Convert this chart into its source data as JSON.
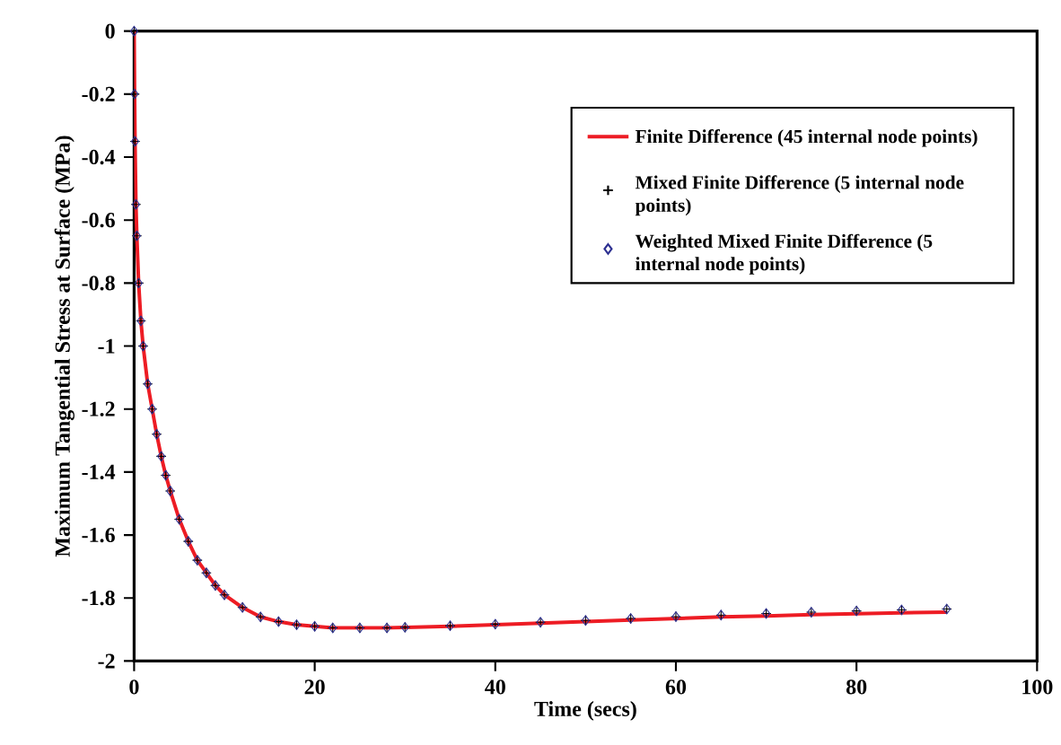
{
  "chart_data": {
    "type": "line",
    "xlabel": "Time (secs)",
    "ylabel": "Maximum Tangential Stress at Surface (MPa)",
    "x": [
      0,
      0.05,
      0.1,
      0.2,
      0.3,
      0.5,
      0.75,
      1,
      1.5,
      2,
      2.5,
      3,
      3.5,
      4,
      5,
      6,
      7,
      8,
      9,
      10,
      12,
      14,
      16,
      18,
      20,
      22,
      25,
      28,
      30,
      35,
      40,
      45,
      50,
      55,
      60,
      65,
      70,
      75,
      80,
      85,
      90
    ],
    "series": [
      {
        "name": "Finite Difference (45 internal node points)",
        "color": "#ed1c24",
        "marker": "none",
        "line_style": "solid",
        "values": [
          0,
          -0.2,
          -0.35,
          -0.55,
          -0.65,
          -0.8,
          -0.92,
          -1.0,
          -1.12,
          -1.2,
          -1.28,
          -1.35,
          -1.41,
          -1.46,
          -1.55,
          -1.62,
          -1.68,
          -1.72,
          -1.76,
          -1.79,
          -1.83,
          -1.86,
          -1.875,
          -1.885,
          -1.89,
          -1.895,
          -1.895,
          -1.895,
          -1.893,
          -1.89,
          -1.885,
          -1.88,
          -1.875,
          -1.87,
          -1.865,
          -1.86,
          -1.857,
          -1.853,
          -1.85,
          -1.847,
          -1.845
        ]
      },
      {
        "name": "Mixed Finite Difference (5 internal node points)",
        "color": "#000000",
        "type": "scatter",
        "marker": "cross",
        "values": [
          0,
          -0.2,
          -0.35,
          -0.55,
          -0.65,
          -0.8,
          -0.92,
          -1.0,
          -1.12,
          -1.2,
          -1.28,
          -1.35,
          -1.41,
          -1.46,
          -1.55,
          -1.62,
          -1.68,
          -1.72,
          -1.76,
          -1.79,
          -1.83,
          -1.86,
          -1.875,
          -1.885,
          -1.89,
          -1.895,
          -1.895,
          -1.895,
          -1.893,
          -1.888,
          -1.883,
          -1.877,
          -1.871,
          -1.865,
          -1.859,
          -1.854,
          -1.849,
          -1.845,
          -1.841,
          -1.838,
          -1.835
        ]
      },
      {
        "name": "Weighted Mixed Finite Difference (5 internal node points)",
        "color": "#2e3192",
        "type": "scatter",
        "marker": "diamond",
        "values": [
          0,
          -0.2,
          -0.35,
          -0.55,
          -0.65,
          -0.8,
          -0.92,
          -1.0,
          -1.12,
          -1.2,
          -1.28,
          -1.35,
          -1.41,
          -1.46,
          -1.55,
          -1.62,
          -1.68,
          -1.72,
          -1.76,
          -1.79,
          -1.83,
          -1.86,
          -1.875,
          -1.885,
          -1.89,
          -1.895,
          -1.895,
          -1.895,
          -1.893,
          -1.888,
          -1.883,
          -1.877,
          -1.871,
          -1.865,
          -1.859,
          -1.854,
          -1.849,
          -1.845,
          -1.841,
          -1.838,
          -1.835
        ]
      }
    ],
    "xlim": [
      0,
      100
    ],
    "xticks": [
      0,
      20,
      40,
      60,
      80,
      100
    ],
    "ylim": [
      -2,
      0
    ],
    "yticks": [
      -2,
      -1.8,
      -1.6,
      -1.4,
      -1.2,
      -1,
      -0.8,
      -0.6,
      -0.4,
      -0.2,
      0
    ],
    "grid": false,
    "legend": "top right"
  }
}
